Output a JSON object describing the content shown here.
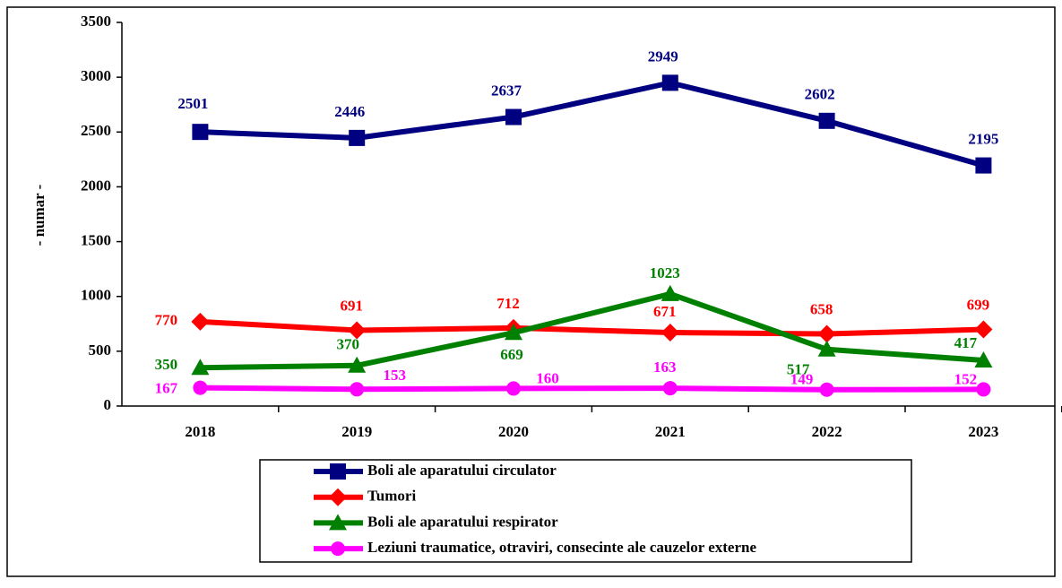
{
  "chart_data": {
    "type": "line",
    "y_label": "- numar -",
    "categories": [
      "2018",
      "2019",
      "2020",
      "2021",
      "2022",
      "2023"
    ],
    "series": [
      {
        "name": "Boli ale aparatului circulator",
        "color": "#000080",
        "marker": "square",
        "values": [
          2501,
          2446,
          2637,
          2949,
          2602,
          2195
        ]
      },
      {
        "name": "Tumori",
        "color": "#ff0000",
        "marker": "diamond",
        "values": [
          770,
          691,
          712,
          671,
          658,
          699
        ]
      },
      {
        "name": "Boli ale aparatului respirator",
        "color": "#008000",
        "marker": "triangle",
        "values": [
          350,
          370,
          669,
          1023,
          517,
          417
        ]
      },
      {
        "name": "Leziuni traumatice, otraviri, consecinte ale cauzelor externe",
        "color": "#ff00ff",
        "marker": "circle",
        "values": [
          167,
          153,
          160,
          163,
          149,
          152
        ]
      }
    ],
    "ylim": [
      0,
      3500
    ],
    "yticks": [
      0,
      500,
      1000,
      1500,
      2000,
      2500,
      3000,
      3500
    ],
    "grid": false
  }
}
